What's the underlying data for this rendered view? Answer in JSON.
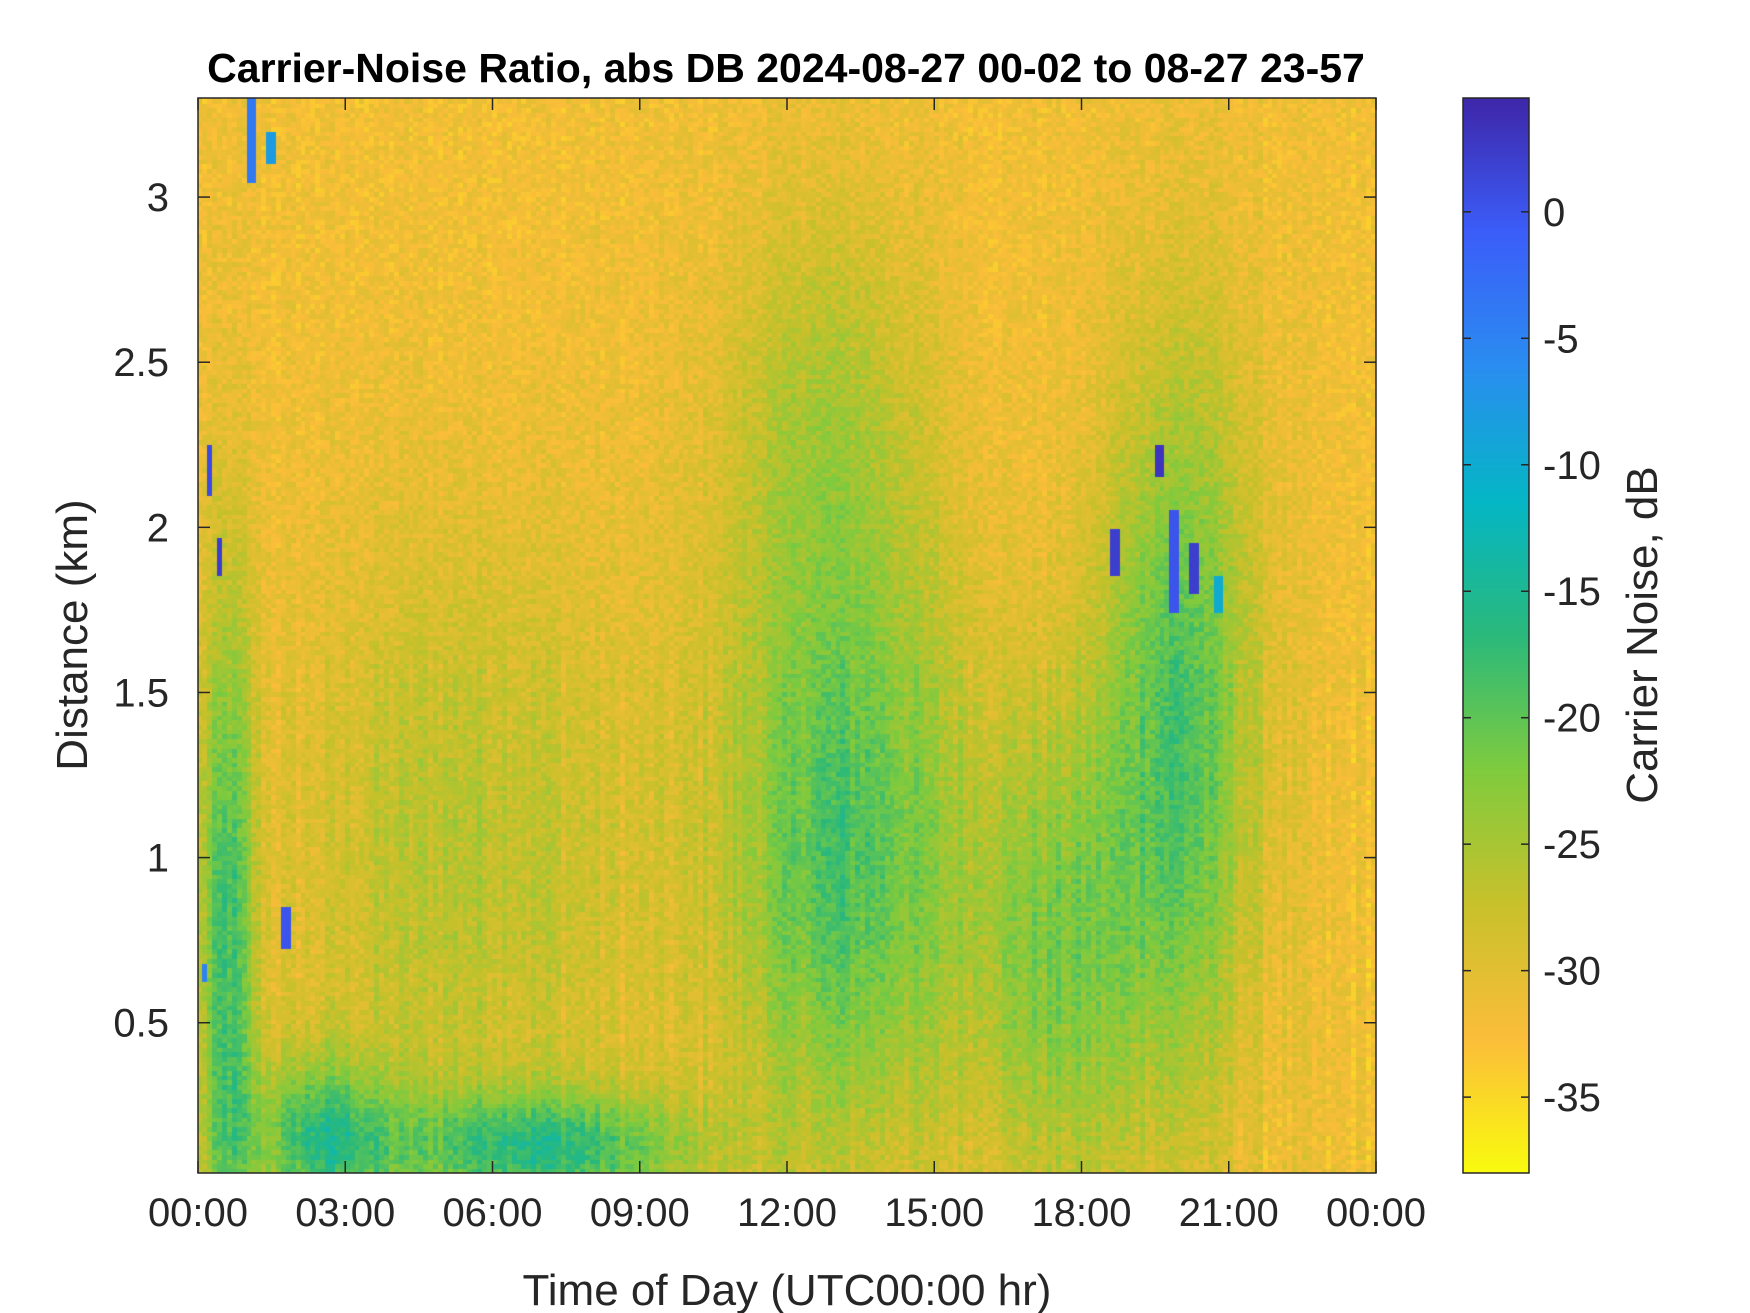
{
  "chart_data": {
    "type": "heatmap",
    "title": "Carrier-Noise Ratio, abs DB 2024-08-27 00-02 to 08-27 23-57",
    "xlabel": "Time of Day (UTC00:00 hr)",
    "ylabel": "Distance (km)",
    "colorbar_label": "Carrier Noise, dB",
    "x_unit": "hours",
    "xlim": [
      0,
      24
    ],
    "ylim": [
      0.045,
      3.3
    ],
    "clim": [
      -38,
      4.5
    ],
    "x_ticks": [
      0,
      3,
      6,
      9,
      12,
      15,
      18,
      21,
      24
    ],
    "x_tick_labels": [
      "00:00",
      "03:00",
      "06:00",
      "09:00",
      "12:00",
      "15:00",
      "18:00",
      "21:00",
      "00:00"
    ],
    "y_ticks": [
      0.5,
      1,
      1.5,
      2,
      2.5,
      3
    ],
    "y_tick_labels": [
      "0.5",
      "1",
      "1.5",
      "2",
      "2.5",
      "3"
    ],
    "colorbar_ticks": [
      0,
      -5,
      -10,
      -15,
      -20,
      -25,
      -30,
      -35
    ],
    "colorbar_tick_labels": [
      "0",
      "-5",
      "-10",
      "-15",
      "-20",
      "-25",
      "-30",
      "-35"
    ],
    "colormap": [
      "#f9fb0e",
      "#fbbd3a",
      "#c8c12b",
      "#7fcb3e",
      "#2ab97b",
      "#04b6c5",
      "#2a8df0",
      "#3b5df9",
      "#3e26a8"
    ],
    "grid": false,
    "background_level_db": -32,
    "features": [
      {
        "time_h": 0.6,
        "distance_km": 0.7,
        "level_db": -19,
        "time_width_h": 0.8,
        "distance_width_km": 1.6
      },
      {
        "time_h": 2.5,
        "distance_km": 0.15,
        "level_db": -19,
        "time_width_h": 2.0,
        "distance_width_km": 0.35
      },
      {
        "time_h": 7.0,
        "distance_km": 0.12,
        "level_db": -18,
        "time_width_h": 4.5,
        "distance_width_km": 0.25
      },
      {
        "time_h": 5.5,
        "distance_km": 1.0,
        "level_db": -26,
        "time_width_h": 5.0,
        "distance_width_km": 1.4
      },
      {
        "time_h": 13.2,
        "distance_km": 1.0,
        "level_db": -19,
        "time_width_h": 3.5,
        "distance_width_km": 1.3
      },
      {
        "time_h": 12.8,
        "distance_km": 2.3,
        "level_db": -26,
        "time_width_h": 3.0,
        "distance_width_km": 1.0
      },
      {
        "time_h": 17.5,
        "distance_km": 0.7,
        "level_db": -23,
        "time_width_h": 2.5,
        "distance_width_km": 1.1
      },
      {
        "time_h": 20.0,
        "distance_km": 1.4,
        "level_db": -19,
        "time_width_h": 2.2,
        "distance_width_km": 1.6
      }
    ],
    "strong_returns": [
      {
        "time_h": 0.25,
        "distance_km_from": 2.1,
        "distance_km_to": 2.25,
        "level_db": 1
      },
      {
        "time_h": 0.45,
        "distance_km_from": 1.85,
        "distance_km_to": 1.97,
        "level_db": 2
      },
      {
        "time_h": 0.15,
        "distance_km_from": 0.62,
        "distance_km_to": 0.68,
        "level_db": -5
      },
      {
        "time_h": 1.1,
        "distance_km_from": 3.05,
        "distance_km_to": 3.3,
        "level_db": -4
      },
      {
        "time_h": 1.5,
        "distance_km_from": 3.1,
        "distance_km_to": 3.2,
        "level_db": -8
      },
      {
        "time_h": 1.8,
        "distance_km_from": 0.72,
        "distance_km_to": 0.85,
        "level_db": 0
      },
      {
        "time_h": 18.7,
        "distance_km_from": 1.85,
        "distance_km_to": 2.0,
        "level_db": 2
      },
      {
        "time_h": 19.6,
        "distance_km_from": 2.15,
        "distance_km_to": 2.25,
        "level_db": 3
      },
      {
        "time_h": 19.9,
        "distance_km_from": 1.75,
        "distance_km_to": 2.05,
        "level_db": 0
      },
      {
        "time_h": 20.3,
        "distance_km_from": 1.8,
        "distance_km_to": 1.95,
        "level_db": 2
      },
      {
        "time_h": 20.8,
        "distance_km_from": 1.75,
        "distance_km_to": 1.85,
        "level_db": -10
      }
    ]
  }
}
